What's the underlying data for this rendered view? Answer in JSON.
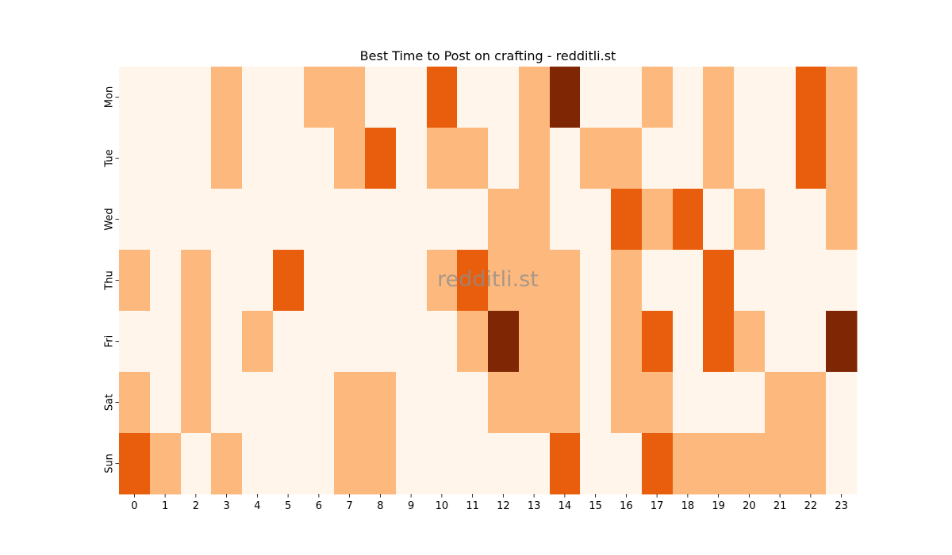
{
  "chart_data": {
    "type": "heatmap",
    "title": "Best Time to Post on crafting - redditli.st",
    "watermark": "redditli.st",
    "x_labels": [
      "0",
      "1",
      "2",
      "3",
      "4",
      "5",
      "6",
      "7",
      "8",
      "9",
      "10",
      "11",
      "12",
      "13",
      "14",
      "15",
      "16",
      "17",
      "18",
      "19",
      "20",
      "21",
      "22",
      "23"
    ],
    "y_labels": [
      "Mon",
      "Tue",
      "Wed",
      "Thu",
      "Fri",
      "Sat",
      "Sun"
    ],
    "values": [
      [
        0,
        0,
        0,
        1,
        0,
        0,
        1,
        1,
        0,
        0,
        2,
        0,
        0,
        1,
        3,
        0,
        0,
        1,
        0,
        1,
        0,
        0,
        2,
        1
      ],
      [
        0,
        0,
        0,
        1,
        0,
        0,
        0,
        1,
        2,
        0,
        1,
        1,
        0,
        1,
        0,
        1,
        1,
        0,
        0,
        1,
        0,
        0,
        2,
        1
      ],
      [
        0,
        0,
        0,
        0,
        0,
        0,
        0,
        0,
        0,
        0,
        0,
        0,
        1,
        1,
        0,
        0,
        2,
        1,
        2,
        0,
        1,
        0,
        0,
        1
      ],
      [
        1,
        0,
        1,
        0,
        0,
        2,
        0,
        0,
        0,
        0,
        1,
        2,
        1,
        1,
        1,
        0,
        1,
        0,
        0,
        2,
        0,
        0,
        0,
        0
      ],
      [
        0,
        0,
        1,
        0,
        1,
        0,
        0,
        0,
        0,
        0,
        0,
        1,
        3,
        1,
        1,
        0,
        1,
        2,
        0,
        2,
        1,
        0,
        0,
        3
      ],
      [
        1,
        0,
        1,
        0,
        0,
        0,
        0,
        1,
        1,
        0,
        0,
        0,
        1,
        1,
        1,
        0,
        1,
        1,
        0,
        0,
        0,
        1,
        1,
        0
      ],
      [
        2,
        1,
        0,
        1,
        0,
        0,
        0,
        1,
        1,
        0,
        0,
        0,
        0,
        0,
        2,
        0,
        0,
        2,
        1,
        1,
        1,
        1,
        1,
        0
      ]
    ],
    "color_scale": [
      "#fff5eb",
      "#fdb97d",
      "#e95e0d",
      "#7f2704"
    ],
    "colorbar": false,
    "grid": false
  }
}
